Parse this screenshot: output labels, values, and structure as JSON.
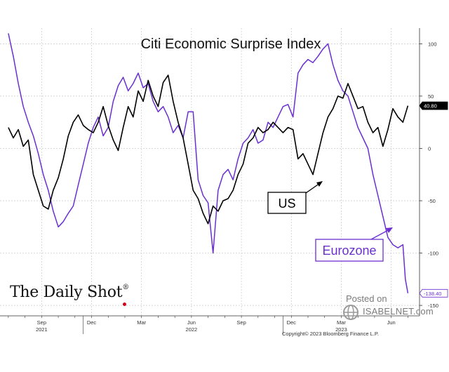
{
  "chart_data": {
    "type": "line",
    "title": "Citi Economic Surprise Index",
    "xlabel": "",
    "ylabel": "",
    "ylim": [
      -160,
      115
    ],
    "yticks": [
      100,
      50,
      0,
      -50,
      -100,
      -150
    ],
    "ytick_labels": [
      "100",
      "50",
      "0",
      "-50",
      "-100",
      "-150"
    ],
    "x_month_ticks": [
      {
        "label": "Sep",
        "t": 2
      },
      {
        "label": "Dec",
        "t": 5
      },
      {
        "label": "Mar",
        "t": 8
      },
      {
        "label": "Jun",
        "t": 11
      },
      {
        "label": "Sep",
        "t": 14
      },
      {
        "label": "Dec",
        "t": 17
      },
      {
        "label": "Mar",
        "t": 20
      },
      {
        "label": "Jun",
        "t": 23
      }
    ],
    "x_year_labels": [
      {
        "label": "2021",
        "t": 2
      },
      {
        "label": "2022",
        "t": 11
      },
      {
        "label": "2023",
        "t": 20
      }
    ],
    "xlim": [
      -0.5,
      24.7
    ],
    "series": [
      {
        "name": "US",
        "color": "#000000",
        "last_value_label": "40.80",
        "points": [
          [
            0,
            20
          ],
          [
            0.3,
            10
          ],
          [
            0.6,
            18
          ],
          [
            0.9,
            2
          ],
          [
            1.2,
            8
          ],
          [
            1.5,
            -25
          ],
          [
            1.8,
            -40
          ],
          [
            2.1,
            -55
          ],
          [
            2.4,
            -58
          ],
          [
            2.7,
            -40
          ],
          [
            3.0,
            -28
          ],
          [
            3.3,
            -10
          ],
          [
            3.6,
            12
          ],
          [
            3.9,
            25
          ],
          [
            4.2,
            32
          ],
          [
            4.5,
            22
          ],
          [
            4.8,
            18
          ],
          [
            5.1,
            15
          ],
          [
            5.4,
            25
          ],
          [
            5.7,
            40
          ],
          [
            6.0,
            22
          ],
          [
            6.3,
            8
          ],
          [
            6.6,
            -2
          ],
          [
            6.9,
            20
          ],
          [
            7.2,
            40
          ],
          [
            7.5,
            30
          ],
          [
            7.8,
            55
          ],
          [
            8.1,
            45
          ],
          [
            8.4,
            65
          ],
          [
            8.7,
            50
          ],
          [
            9.0,
            40
          ],
          [
            9.3,
            63
          ],
          [
            9.6,
            70
          ],
          [
            9.9,
            45
          ],
          [
            10.2,
            25
          ],
          [
            10.5,
            10
          ],
          [
            10.8,
            -15
          ],
          [
            11.1,
            -40
          ],
          [
            11.4,
            -48
          ],
          [
            11.7,
            -62
          ],
          [
            12.0,
            -72
          ],
          [
            12.3,
            -55
          ],
          [
            12.6,
            -60
          ],
          [
            12.9,
            -50
          ],
          [
            13.2,
            -48
          ],
          [
            13.5,
            -40
          ],
          [
            13.8,
            -25
          ],
          [
            14.1,
            -15
          ],
          [
            14.4,
            5
          ],
          [
            14.7,
            10
          ],
          [
            15.0,
            20
          ],
          [
            15.3,
            15
          ],
          [
            15.6,
            18
          ],
          [
            15.9,
            25
          ],
          [
            16.2,
            20
          ],
          [
            16.5,
            15
          ],
          [
            16.8,
            20
          ],
          [
            17.1,
            18
          ],
          [
            17.4,
            -10
          ],
          [
            17.7,
            -5
          ],
          [
            18.0,
            -15
          ],
          [
            18.3,
            -25
          ],
          [
            18.6,
            -5
          ],
          [
            18.9,
            15
          ],
          [
            19.2,
            30
          ],
          [
            19.5,
            38
          ],
          [
            19.8,
            50
          ],
          [
            20.1,
            48
          ],
          [
            20.4,
            62
          ],
          [
            20.7,
            50
          ],
          [
            21.0,
            38
          ],
          [
            21.3,
            40
          ],
          [
            21.6,
            25
          ],
          [
            21.9,
            15
          ],
          [
            22.2,
            20
          ],
          [
            22.5,
            2
          ],
          [
            22.8,
            18
          ],
          [
            23.1,
            38
          ],
          [
            23.4,
            30
          ],
          [
            23.7,
            25
          ],
          [
            24.0,
            40.8
          ]
        ]
      },
      {
        "name": "Eurozone",
        "color": "#6b2fd0",
        "last_value_label": "-138.40",
        "points": [
          [
            0,
            110
          ],
          [
            0.3,
            88
          ],
          [
            0.6,
            62
          ],
          [
            0.9,
            40
          ],
          [
            1.2,
            25
          ],
          [
            1.5,
            12
          ],
          [
            1.8,
            -5
          ],
          [
            2.1,
            -25
          ],
          [
            2.4,
            -40
          ],
          [
            2.7,
            -60
          ],
          [
            3.0,
            -75
          ],
          [
            3.3,
            -70
          ],
          [
            3.6,
            -62
          ],
          [
            3.9,
            -55
          ],
          [
            4.2,
            -35
          ],
          [
            4.5,
            -15
          ],
          [
            4.8,
            5
          ],
          [
            5.1,
            20
          ],
          [
            5.4,
            30
          ],
          [
            5.7,
            12
          ],
          [
            6.0,
            20
          ],
          [
            6.3,
            45
          ],
          [
            6.6,
            60
          ],
          [
            6.9,
            68
          ],
          [
            7.2,
            55
          ],
          [
            7.5,
            62
          ],
          [
            7.8,
            72
          ],
          [
            8.1,
            58
          ],
          [
            8.4,
            62
          ],
          [
            8.7,
            45
          ],
          [
            9.0,
            35
          ],
          [
            9.3,
            40
          ],
          [
            9.6,
            30
          ],
          [
            9.9,
            15
          ],
          [
            10.2,
            22
          ],
          [
            10.5,
            10
          ],
          [
            10.8,
            35
          ],
          [
            11.1,
            35
          ],
          [
            11.4,
            -30
          ],
          [
            11.7,
            -45
          ],
          [
            12.0,
            -52
          ],
          [
            12.3,
            -100
          ],
          [
            12.6,
            -40
          ],
          [
            12.9,
            -25
          ],
          [
            13.2,
            -20
          ],
          [
            13.5,
            -30
          ],
          [
            13.8,
            -10
          ],
          [
            14.1,
            5
          ],
          [
            14.4,
            10
          ],
          [
            14.7,
            18
          ],
          [
            15.0,
            5
          ],
          [
            15.3,
            8
          ],
          [
            15.6,
            25
          ],
          [
            15.9,
            20
          ],
          [
            16.2,
            30
          ],
          [
            16.5,
            40
          ],
          [
            16.8,
            42
          ],
          [
            17.1,
            30
          ],
          [
            17.4,
            72
          ],
          [
            17.7,
            80
          ],
          [
            18.0,
            85
          ],
          [
            18.3,
            82
          ],
          [
            18.6,
            88
          ],
          [
            18.9,
            95
          ],
          [
            19.2,
            100
          ],
          [
            19.5,
            80
          ],
          [
            19.8,
            65
          ],
          [
            20.1,
            55
          ],
          [
            20.4,
            50
          ],
          [
            20.7,
            35
          ],
          [
            21.0,
            20
          ],
          [
            21.3,
            10
          ],
          [
            21.6,
            0
          ],
          [
            21.9,
            -25
          ],
          [
            22.2,
            -45
          ],
          [
            22.5,
            -65
          ],
          [
            22.8,
            -85
          ],
          [
            23.1,
            -92
          ],
          [
            23.4,
            -95
          ],
          [
            23.7,
            -92
          ],
          [
            23.85,
            -125
          ],
          [
            24.0,
            -138.4
          ]
        ]
      }
    ],
    "annotations": [
      {
        "text": "US",
        "color": "#000000"
      },
      {
        "text": "Eurozone",
        "color": "#6b2fd0"
      }
    ]
  },
  "watermark": {
    "posted_on": "Posted on",
    "site": "ISABELNET.com"
  },
  "brand": {
    "name": "The Daily Shot",
    "mark": "®"
  },
  "copyright": "Copyright© 2023 Bloomberg Finance L.P."
}
